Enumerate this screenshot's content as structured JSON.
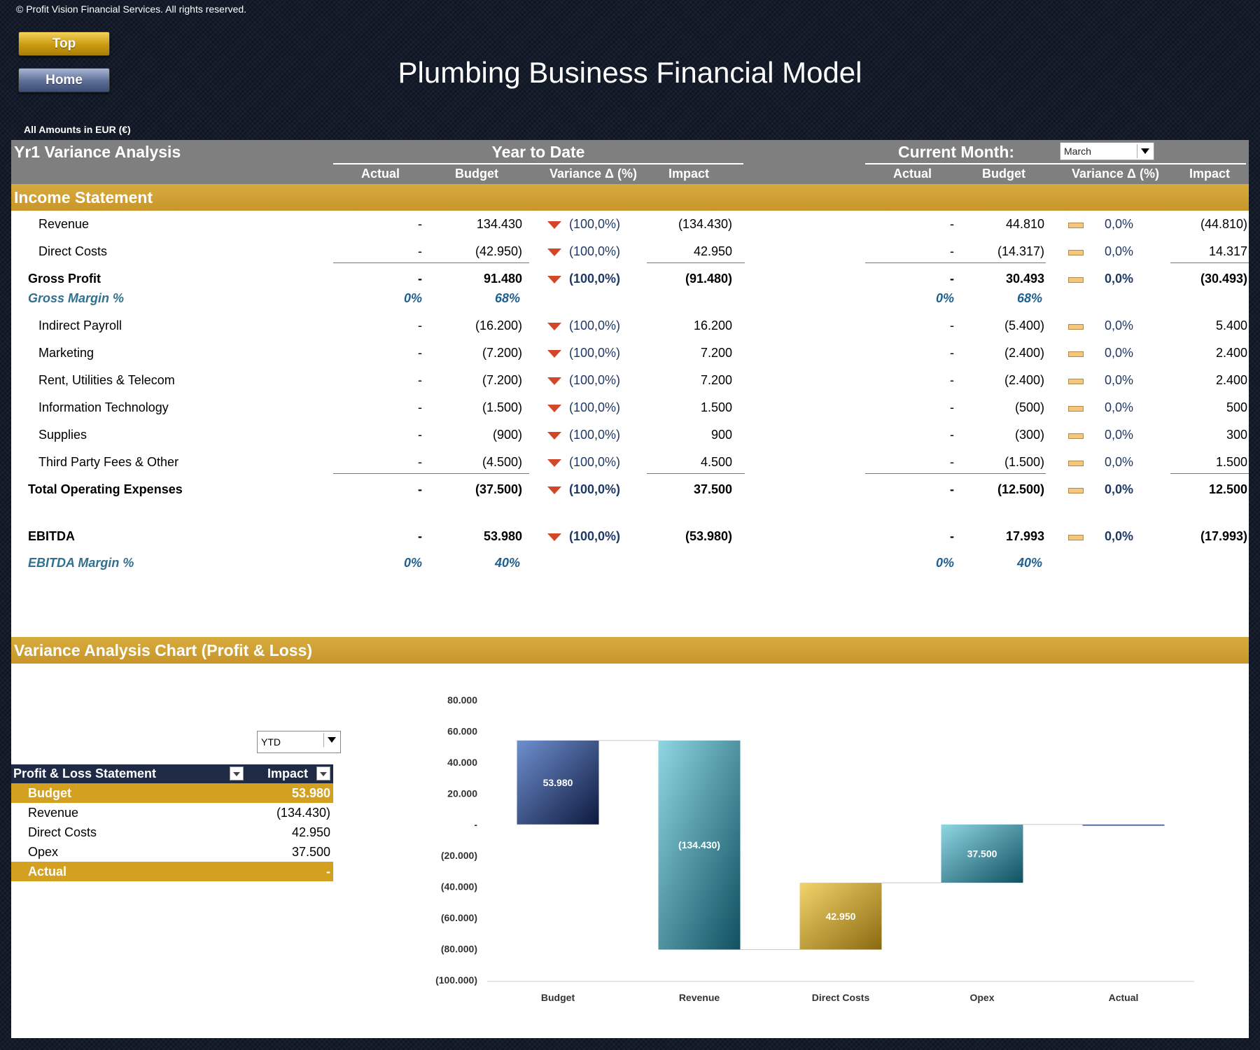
{
  "copyright": "© Profit Vision Financial Services. All rights reserved.",
  "nav": {
    "top_label": "Top",
    "home_label": "Home"
  },
  "title": "Plumbing Business Financial Model",
  "amounts_note": "All Amounts in  EUR (€)",
  "header": {
    "title": "Yr1 Variance Analysis",
    "ytd_label": "Year to Date",
    "current_month_label": "Current Month:",
    "month_selected": "March",
    "columns": {
      "actual": "Actual",
      "budget": "Budget",
      "variance": "Variance Δ  (%)",
      "impact": "Impact"
    }
  },
  "income_statement": {
    "title": "Income Statement",
    "rows": [
      {
        "label": "Revenue",
        "ytd": [
          "-",
          "134.430",
          "(100,0%)",
          "(134.430)"
        ],
        "cm": [
          "-",
          "44.810",
          "0,0%",
          "(44.810)"
        ]
      },
      {
        "label": "Direct Costs",
        "ytd": [
          "-",
          "(42.950)",
          "(100,0%)",
          "42.950"
        ],
        "cm": [
          "-",
          "(14.317)",
          "0,0%",
          "14.317"
        ]
      },
      {
        "label": "Gross Profit",
        "ytd": [
          "-",
          "91.480",
          "(100,0%)",
          "(91.480)"
        ],
        "cm": [
          "-",
          "30.493",
          "0,0%",
          "(30.493)"
        ]
      },
      {
        "label": "Gross Margin %",
        "ytd": [
          "0%",
          "68%"
        ],
        "cm": [
          "0%",
          "68%"
        ]
      },
      {
        "label": "Indirect Payroll",
        "ytd": [
          "-",
          "(16.200)",
          "(100,0%)",
          "16.200"
        ],
        "cm": [
          "-",
          "(5.400)",
          "0,0%",
          "5.400"
        ]
      },
      {
        "label": "Marketing",
        "ytd": [
          "-",
          "(7.200)",
          "(100,0%)",
          "7.200"
        ],
        "cm": [
          "-",
          "(2.400)",
          "0,0%",
          "2.400"
        ]
      },
      {
        "label": "Rent, Utilities & Telecom",
        "ytd": [
          "-",
          "(7.200)",
          "(100,0%)",
          "7.200"
        ],
        "cm": [
          "-",
          "(2.400)",
          "0,0%",
          "2.400"
        ]
      },
      {
        "label": "Information Technology",
        "ytd": [
          "-",
          "(1.500)",
          "(100,0%)",
          "1.500"
        ],
        "cm": [
          "-",
          "(500)",
          "0,0%",
          "500"
        ]
      },
      {
        "label": "Supplies",
        "ytd": [
          "-",
          "(900)",
          "(100,0%)",
          "900"
        ],
        "cm": [
          "-",
          "(300)",
          "0,0%",
          "300"
        ]
      },
      {
        "label": "Third Party Fees & Other",
        "ytd": [
          "-",
          "(4.500)",
          "(100,0%)",
          "4.500"
        ],
        "cm": [
          "-",
          "(1.500)",
          "0,0%",
          "1.500"
        ]
      },
      {
        "label": "Total Operating Expenses",
        "ytd": [
          "-",
          "(37.500)",
          "(100,0%)",
          "37.500"
        ],
        "cm": [
          "-",
          "(12.500)",
          "0,0%",
          "12.500"
        ]
      },
      {
        "label": "EBITDA",
        "ytd": [
          "-",
          "53.980",
          "(100,0%)",
          "(53.980)"
        ],
        "cm": [
          "-",
          "17.993",
          "0,0%",
          "(17.993)"
        ]
      },
      {
        "label": "EBITDA Margin %",
        "ytd": [
          "0%",
          "40%"
        ],
        "cm": [
          "0%",
          "40%"
        ]
      }
    ]
  },
  "chart_section": {
    "title": "Variance Analysis Chart (Profit & Loss)",
    "period_selected": "YTD",
    "pl_table": {
      "col1": "Profit & Loss Statement",
      "col2": "Impact",
      "rows": [
        {
          "label": "Budget",
          "value": "53.980"
        },
        {
          "label": "Revenue",
          "value": "(134.430)"
        },
        {
          "label": "Direct Costs",
          "value": "42.950"
        },
        {
          "label": "Opex",
          "value": "37.500"
        },
        {
          "label": "Actual",
          "value": "-"
        }
      ]
    }
  },
  "chart_data": {
    "type": "bar",
    "subtype": "waterfall",
    "categories": [
      "Budget",
      "Revenue",
      "Direct Costs",
      "Opex",
      "Actual"
    ],
    "values": [
      53980,
      -134430,
      42950,
      37500,
      0
    ],
    "data_labels": [
      "53.980",
      "(134.430)",
      "42.950",
      "37.500",
      ""
    ],
    "ylim": [
      -100000,
      80000
    ],
    "yticks": [
      "80.000",
      "60.000",
      "40.000",
      "20.000",
      "-",
      "(20.000)",
      "(40.000)",
      "(60.000)",
      "(80.000)",
      "(100.000)"
    ],
    "colors": [
      "#1f3a6e",
      "#2a9bb0",
      "#d6a824",
      "#2a98ad",
      "#5a6fa0"
    ],
    "grid": false,
    "legend": "none"
  }
}
